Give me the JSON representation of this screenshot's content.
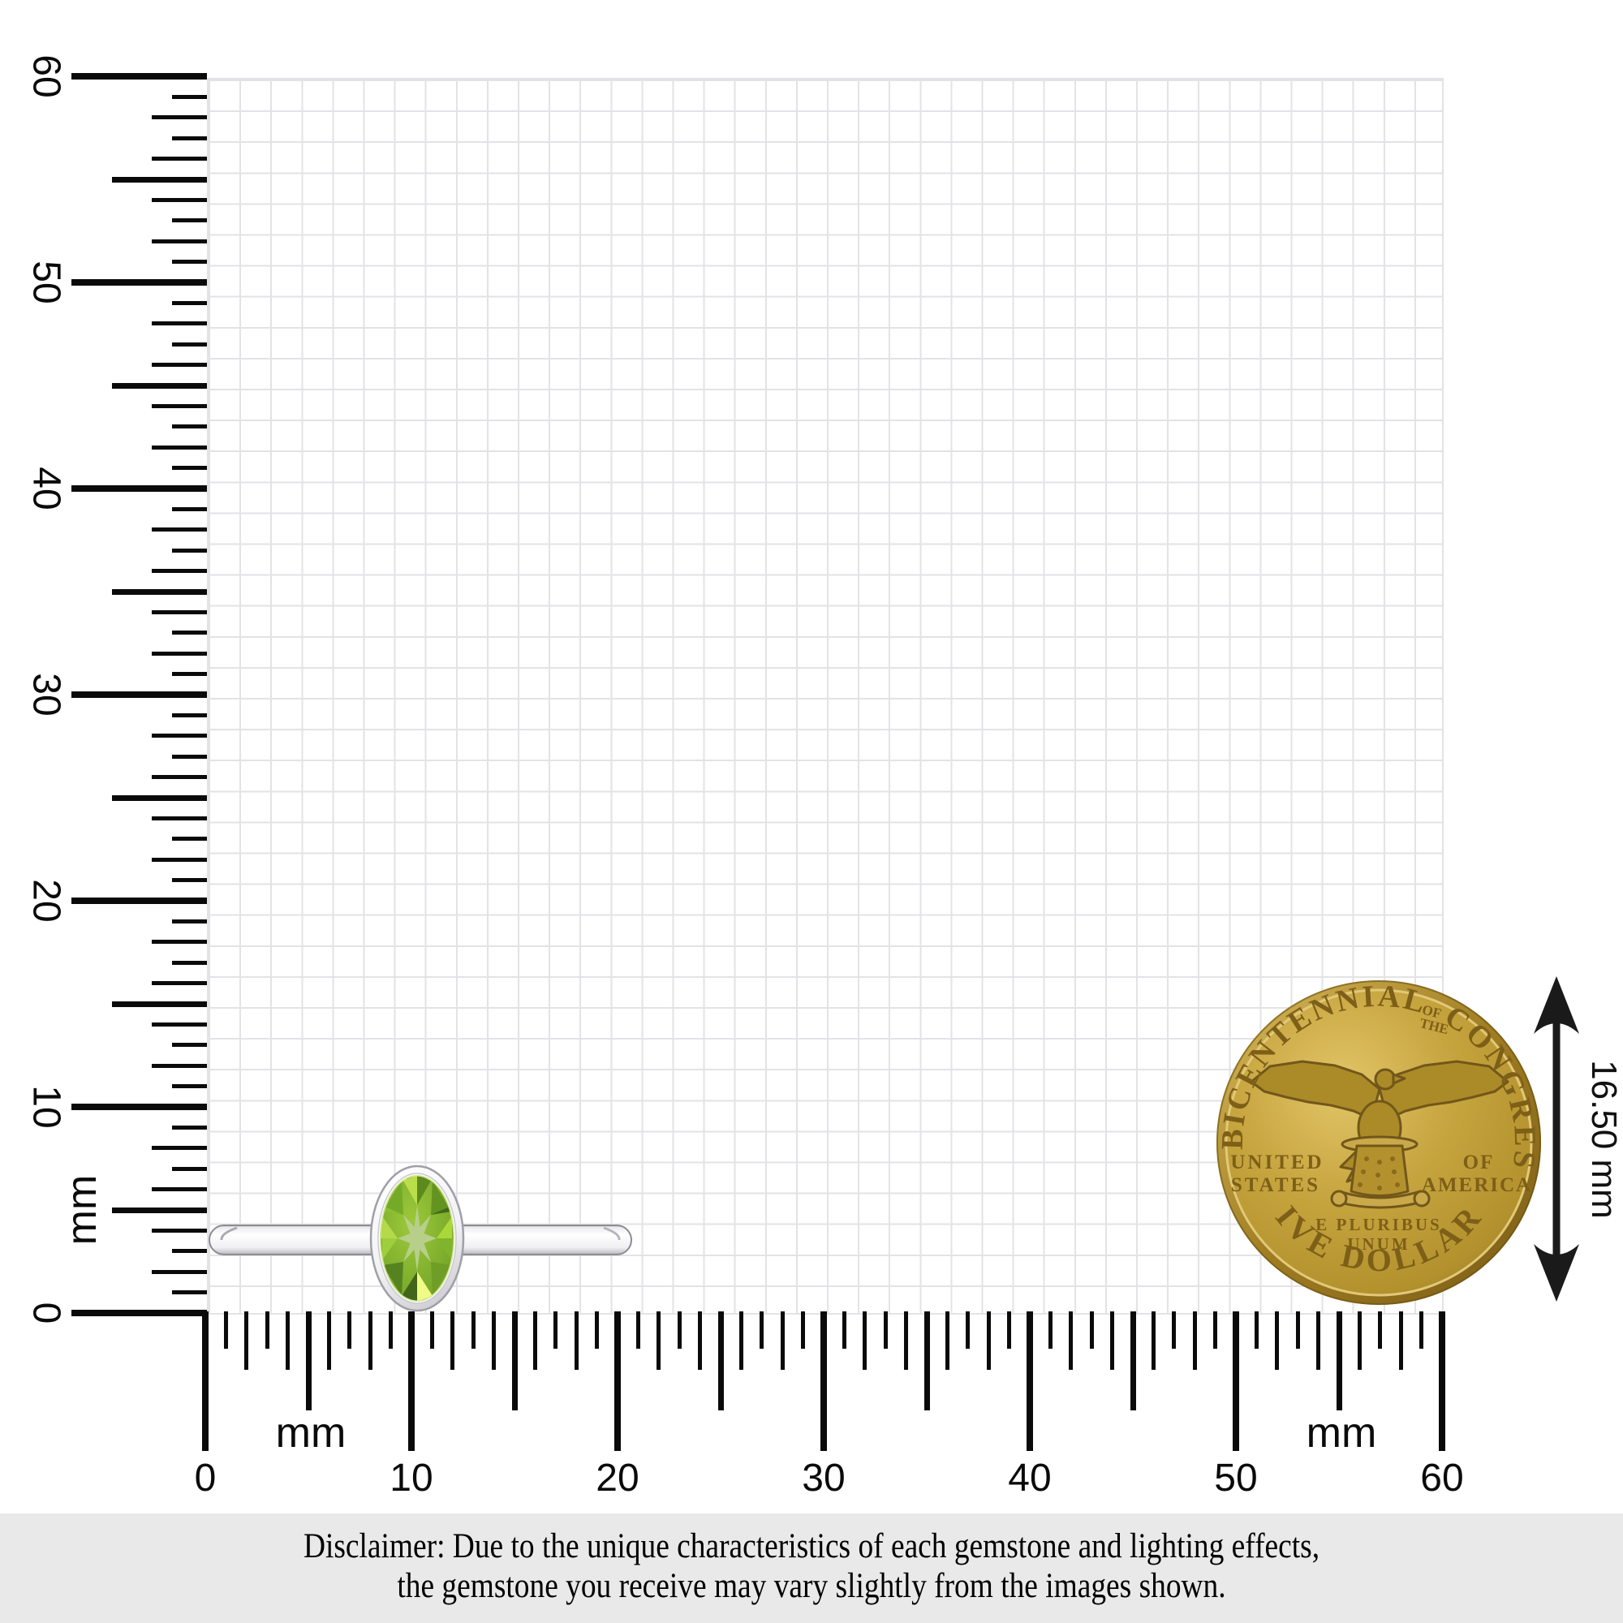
{
  "rulers": {
    "unit_label": "mm",
    "min": 0,
    "max": 60,
    "step_mm": 1,
    "major_labels": [
      "0",
      "10",
      "20",
      "30",
      "40",
      "50",
      "60"
    ],
    "tick_color": "#0a0a0a"
  },
  "grid": {
    "line_color": "#e3e3e7",
    "span_mm": 60
  },
  "ring": {
    "metal_color": "#ffffff",
    "metal_edge_color": "#97979d",
    "gem": {
      "name": "peridot-oval",
      "base_color": "#7fb02a",
      "star_color": "#b7cf8a",
      "bright_color": "#e3f76e",
      "dark_color": "#568220"
    }
  },
  "coin": {
    "gold_color": "#b3922e",
    "gold_highlight": "#e3c568",
    "gold_shadow": "#8a6a20",
    "arc_top_left": "BICENTENNIAL",
    "arc_top_center_line1": "OF",
    "arc_top_center_line2": "THE",
    "arc_top_right": "CONGRESS",
    "left_line1": "UNITED",
    "left_line2": "STATES",
    "right_line1": "OF",
    "right_line2": "AMERICA",
    "motto_line1": "E PLURIBUS",
    "motto_line2": "UNUM",
    "arc_bottom": "FIVE DOLLARS"
  },
  "annotation": {
    "label": "16.50 mm"
  },
  "disclaimer": {
    "line1": "Disclaimer: Due to the unique characteristics of each gemstone and lighting effects,",
    "line2": "the gemstone you receive may vary slightly from the images shown."
  }
}
